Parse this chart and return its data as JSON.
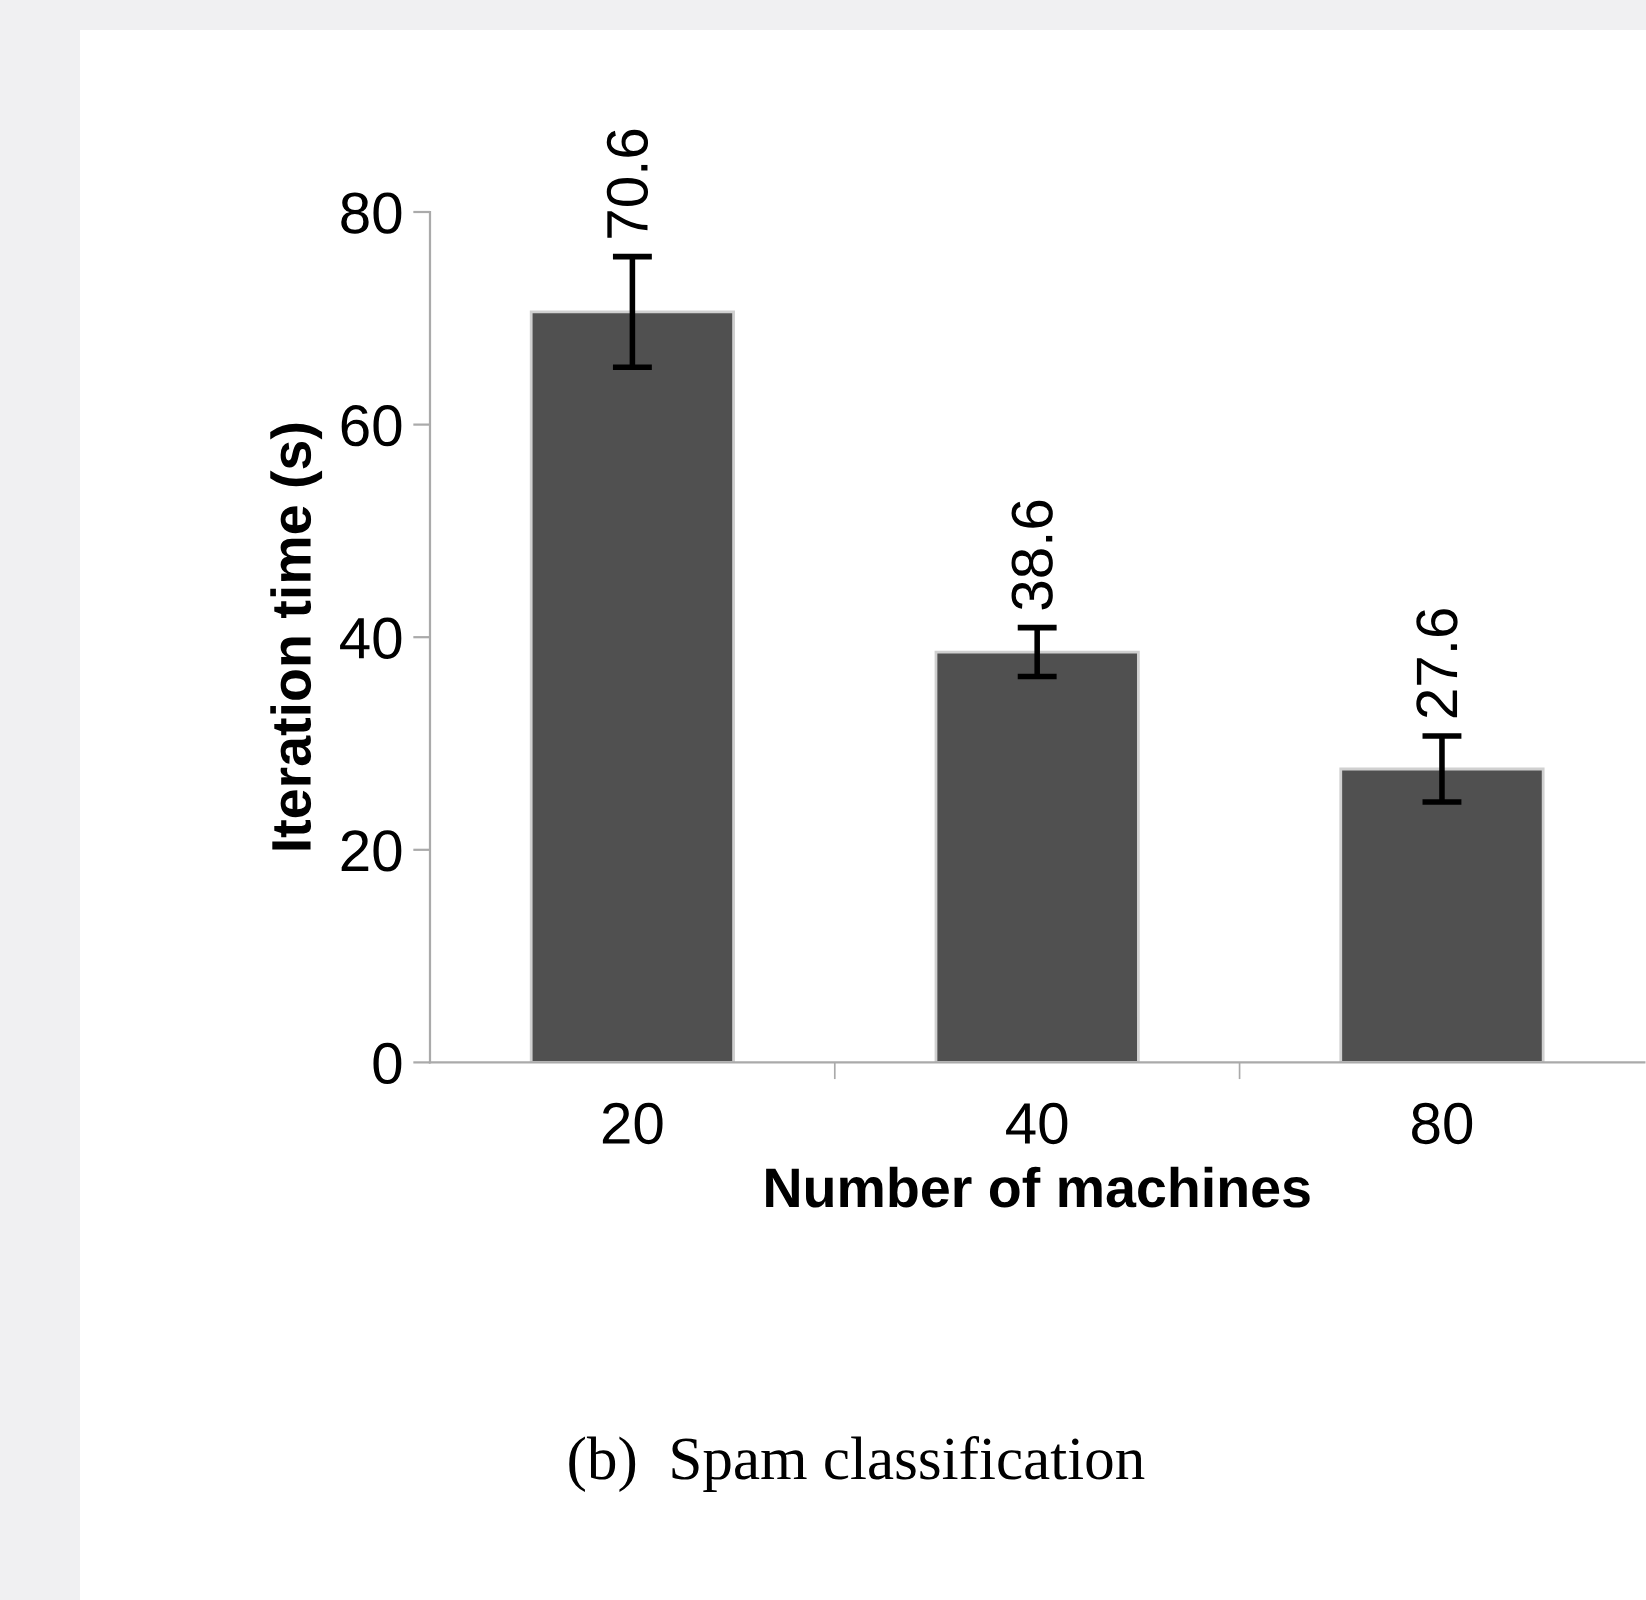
{
  "chart_data": {
    "type": "bar",
    "xlabel": "Number of machines",
    "ylabel": "Iteration time (s)",
    "categories": [
      "20",
      "40",
      "80"
    ],
    "series": [
      {
        "color": "#505050",
        "values": [
          70.6,
          38.6,
          27.6
        ],
        "errors": [
          5.2,
          2.3,
          3.1
        ]
      }
    ],
    "ylim": [
      0,
      80
    ],
    "yticks": [
      0,
      20,
      40,
      60,
      80
    ],
    "data_labels": true,
    "grid": false,
    "legend": false,
    "annotations": [
      "(b)  Spam classification"
    ]
  }
}
